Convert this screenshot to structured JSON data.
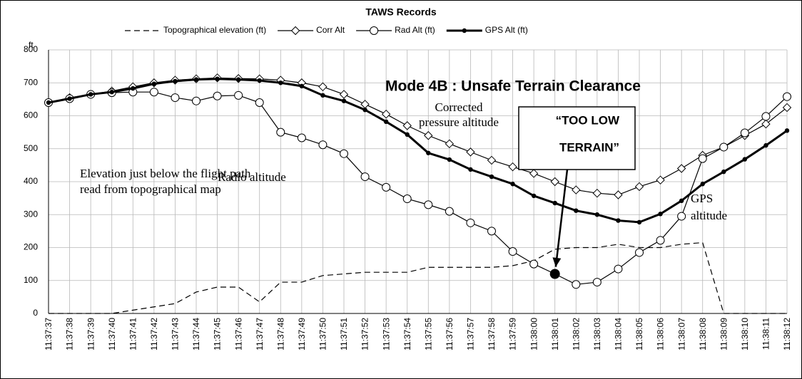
{
  "chart_data": {
    "type": "line",
    "title": "TAWS Records",
    "y_unit": "ft",
    "categories": [
      "11:37:37",
      "11:37:38",
      "11:37:39",
      "11:37:40",
      "11:37:41",
      "11:37:42",
      "11:37:43",
      "11:37:44",
      "11:37:45",
      "11:37:46",
      "11:37:47",
      "11:37:48",
      "11:37:49",
      "11:37:50",
      "11:37:51",
      "11:37:52",
      "11:37:53",
      "11:37:54",
      "11:37:55",
      "11:37:56",
      "11:37:57",
      "11:37:58",
      "11:37:59",
      "11:38:00",
      "11:38:01",
      "11:38:02",
      "11:38:03",
      "11:38:04",
      "11:38:05",
      "11:38:06",
      "11:38:07",
      "11:38:08",
      "11:38:09",
      "11:38:10",
      "11:38:11",
      "11:38:12"
    ],
    "series": [
      {
        "name": "Topographical elevation (ft)",
        "color": "#000000",
        "marker": "none",
        "dash": true,
        "width": 1.2,
        "values": [
          0,
          0,
          0,
          0,
          10,
          20,
          30,
          65,
          80,
          80,
          35,
          95,
          95,
          115,
          120,
          125,
          125,
          125,
          140,
          140,
          140,
          140,
          145,
          160,
          195,
          200,
          200,
          210,
          200,
          200,
          210,
          215,
          0,
          0,
          0,
          0
        ]
      },
      {
        "name": "Corr Alt",
        "color": "#000000",
        "marker": "diamond",
        "dash": false,
        "width": 1.2,
        "values": [
          640,
          655,
          665,
          675,
          688,
          700,
          708,
          712,
          715,
          713,
          712,
          708,
          700,
          688,
          665,
          635,
          605,
          570,
          540,
          515,
          490,
          465,
          445,
          425,
          400,
          375,
          365,
          360,
          385,
          405,
          440,
          480,
          505,
          540,
          575,
          625
        ]
      },
      {
        "name": "Rad Alt (ft)",
        "color": "#000000",
        "marker": "circle",
        "dash": false,
        "width": 1.2,
        "highlight_index": 24,
        "values": [
          640,
          652,
          665,
          670,
          672,
          672,
          655,
          645,
          660,
          662,
          640,
          550,
          533,
          512,
          485,
          415,
          383,
          348,
          330,
          310,
          275,
          250,
          188,
          150,
          120,
          88,
          95,
          135,
          185,
          222,
          295,
          470,
          505,
          548,
          598,
          658
        ]
      },
      {
        "name": "GPS Alt (ft)",
        "color": "#000000",
        "marker": "dot",
        "dash": false,
        "width": 3,
        "values": [
          640,
          652,
          665,
          672,
          683,
          697,
          705,
          710,
          712,
          710,
          707,
          700,
          690,
          662,
          645,
          618,
          582,
          543,
          487,
          467,
          437,
          415,
          393,
          357,
          335,
          312,
          300,
          282,
          277,
          302,
          342,
          393,
          430,
          468,
          510,
          555
        ]
      }
    ],
    "ylim": [
      0,
      800
    ],
    "yticks": [
      0,
      100,
      200,
      300,
      400,
      500,
      600,
      700,
      800
    ],
    "grid": true,
    "annotations": [
      {
        "lines": [
          "Mode 4B : Unsafe Terrain Clearance"
        ]
      },
      {
        "lines": [
          "Corrected",
          "pressure altitude"
        ]
      },
      {
        "lines": [
          "Radio altitude"
        ]
      },
      {
        "lines": [
          "GPS",
          "altitude"
        ]
      },
      {
        "lines": [
          "Elevation just below the flight path",
          "read from topographical map"
        ]
      },
      {
        "lines": [
          "“TOO LOW",
          "TERRAIN”"
        ]
      }
    ]
  }
}
